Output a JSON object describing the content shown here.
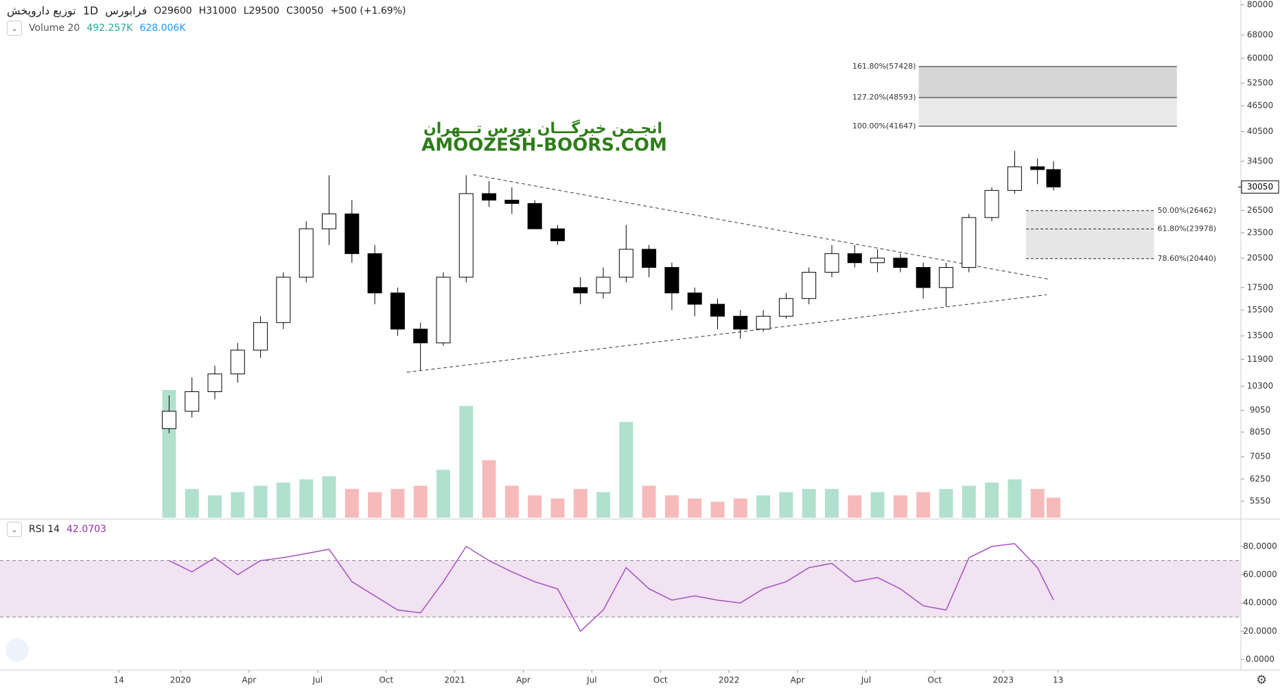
{
  "chart_data": [
    {
      "type": "candlestick",
      "title": "توزیع داروپخش",
      "interval": "1D",
      "exchange": "فرابورس",
      "ohlc_text": [
        "O29600",
        "H31000",
        "L29500",
        "C30050"
      ],
      "change": "+500 (+1.69%)",
      "volume_title": "Volume 20",
      "volume_labels": [
        "492.257K",
        "628.006K"
      ],
      "watermark": [
        "انجـمن خبرگـــان بورس تـــهران",
        "AMOOZESH-BOORS.COM"
      ],
      "log_scale": true,
      "xlim": [
        -7.9,
        46.4
      ],
      "xticks": [
        {
          "value": -2.7,
          "label": "14"
        },
        {
          "value": 0,
          "label": "2020"
        },
        {
          "value": 3,
          "label": "Apr"
        },
        {
          "value": 6,
          "label": "Jul"
        },
        {
          "value": 9,
          "label": "Oct"
        },
        {
          "value": 12,
          "label": "2021"
        },
        {
          "value": 15,
          "label": "Apr"
        },
        {
          "value": 18,
          "label": "Jul"
        },
        {
          "value": 21,
          "label": "Oct"
        },
        {
          "value": 24,
          "label": "2022"
        },
        {
          "value": 27,
          "label": "Apr"
        },
        {
          "value": 30,
          "label": "Jul"
        },
        {
          "value": 33,
          "label": "Oct"
        },
        {
          "value": 36,
          "label": "2023"
        },
        {
          "value": 38.4,
          "label": "13"
        }
      ],
      "ylim": [
        5080,
        82100
      ],
      "yticks": [
        80000,
        68000,
        60000,
        52500,
        46500,
        40500,
        34500,
        26500,
        23500,
        20500,
        17500,
        15500,
        13500,
        11900,
        10300,
        9050,
        8050,
        7050,
        6250,
        5550
      ],
      "last_price": 30050,
      "x": [
        -0.5,
        0.5,
        1.5,
        2.5,
        3.5,
        4.5,
        5.5,
        6.5,
        7.5,
        8.5,
        9.5,
        10.5,
        11.5,
        12.5,
        13.5,
        14.5,
        15.5,
        16.5,
        17.5,
        18.5,
        19.5,
        20.5,
        21.5,
        22.5,
        23.5,
        24.5,
        25.5,
        26.5,
        27.5,
        28.5,
        29.5,
        30.5,
        31.5,
        32.5,
        33.5,
        34.5,
        35.5,
        36.5,
        37.5,
        38.2
      ],
      "open": [
        8200,
        9000,
        10000,
        11000,
        12500,
        14500,
        18500,
        24000,
        26000,
        21000,
        17000,
        14000,
        13000,
        18500,
        29000,
        28000,
        27500,
        24000,
        17500,
        17000,
        18500,
        21500,
        19500,
        17000,
        16000,
        15000,
        14000,
        15000,
        16500,
        19000,
        21000,
        20000,
        20500,
        19500,
        17500,
        19500,
        25500,
        29500,
        33500,
        33000
      ],
      "high": [
        9800,
        10800,
        11500,
        13000,
        15000,
        19000,
        25000,
        32000,
        28000,
        22000,
        17500,
        14500,
        19000,
        32000,
        31000,
        30000,
        28000,
        24500,
        18500,
        19500,
        24500,
        22000,
        20000,
        17500,
        16500,
        15500,
        15500,
        17000,
        19500,
        22000,
        22000,
        21500,
        21000,
        20000,
        20000,
        26000,
        30000,
        36500,
        35000,
        34500
      ],
      "low": [
        8000,
        8700,
        9600,
        10500,
        12000,
        14000,
        18000,
        22000,
        20000,
        16000,
        13500,
        11200,
        12800,
        18000,
        27000,
        26000,
        24000,
        22000,
        16000,
        16500,
        18000,
        18500,
        15500,
        15000,
        14000,
        13300,
        13800,
        14800,
        16000,
        18500,
        19500,
        19000,
        19000,
        16500,
        15800,
        19000,
        25000,
        29000,
        30500,
        29500
      ],
      "close": [
        9000,
        10000,
        11000,
        12500,
        14500,
        18500,
        24000,
        26000,
        21000,
        17000,
        14000,
        13000,
        18500,
        29000,
        28000,
        27500,
        24000,
        22500,
        17000,
        18500,
        21500,
        19500,
        17000,
        16000,
        15000,
        14000,
        15000,
        16500,
        19000,
        21000,
        20000,
        20500,
        19500,
        17500,
        19500,
        25500,
        29500,
        33500,
        33000,
        30050
      ],
      "volume": [
        4000,
        900,
        700,
        800,
        1000,
        1100,
        1200,
        1300,
        900,
        800,
        900,
        1000,
        1500,
        3500,
        1800,
        1000,
        700,
        600,
        900,
        800,
        3000,
        1000,
        700,
        600,
        500,
        600,
        700,
        800,
        900,
        900,
        700,
        800,
        700,
        800,
        900,
        1000,
        1100,
        1200,
        900,
        628.006
      ],
      "colors": {
        "up": "#ffffff",
        "down": "#000000",
        "volume_up": "#9fd8c2",
        "volume_down": "#f4a9a9"
      },
      "trendlines": [
        {
          "x": [
            12.8,
            38.0
          ],
          "y": [
            32100,
            18300
          ]
        },
        {
          "x": [
            9.9,
            37.9
          ],
          "y": [
            11100,
            16840
          ]
        }
      ],
      "fib_upper": {
        "x": [
          32.3,
          43.6
        ],
        "levels": [
          {
            "value": 57428,
            "label": "161.80%(57428)"
          },
          {
            "value": 48593,
            "label": "127.20%(48593)"
          },
          {
            "value": 41647,
            "label": "100.00%(41647)"
          }
        ]
      },
      "fib_lower": {
        "x": [
          37.0,
          42.6
        ],
        "levels": [
          {
            "value": 26462,
            "label": "50.00%(26462)"
          },
          {
            "value": 23978,
            "label": "61.80%(23978)"
          },
          {
            "value": 20440,
            "label": "78.60%(20440)"
          }
        ]
      }
    },
    {
      "type": "line",
      "title": "RSI 14",
      "last_label": "42.0703",
      "color": "#a64fc2",
      "band": [
        30,
        70
      ],
      "band_color": "#f1e3f1",
      "xlim": [
        -7.9,
        46.4
      ],
      "ylim": [
        -7.5,
        98.4
      ],
      "yticks": [
        {
          "value": 80,
          "label": "80.0000"
        },
        {
          "value": 60,
          "label": "60.0000"
        },
        {
          "value": 40,
          "label": "40.0000"
        },
        {
          "value": 20,
          "label": "20.0000"
        },
        {
          "value": 0,
          "label": "0.0000"
        }
      ],
      "x": [
        -0.5,
        0.5,
        1.5,
        2.5,
        3.5,
        4.5,
        5.5,
        6.5,
        7.5,
        8.5,
        9.5,
        10.5,
        11.5,
        12.5,
        13.5,
        14.5,
        15.5,
        16.5,
        17.5,
        18.5,
        19.5,
        20.5,
        21.5,
        22.5,
        23.5,
        24.5,
        25.5,
        26.5,
        27.5,
        28.5,
        29.5,
        30.5,
        31.5,
        32.5,
        33.5,
        34.5,
        35.5,
        36.5,
        37.5,
        38.2
      ],
      "values": [
        70,
        62,
        72,
        60,
        70,
        72,
        75,
        78,
        55,
        45,
        35,
        33,
        55,
        80,
        70,
        62,
        55,
        50,
        20,
        35,
        65,
        50,
        42,
        45,
        42,
        40,
        50,
        55,
        65,
        68,
        55,
        58,
        50,
        38,
        35,
        72,
        80,
        82,
        65,
        42.0703
      ]
    }
  ]
}
